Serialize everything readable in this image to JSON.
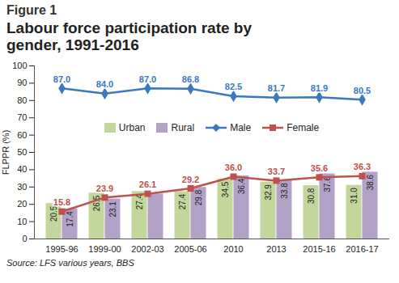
{
  "chart_data": {
    "type": "bar",
    "subtitle": "Figure 1",
    "title": "Labour force participation rate by gender, 1991-2016",
    "caption": "Source: LFS various years, BBS",
    "y_label": "FLPPR (%)",
    "categories": [
      "1995-96",
      "1999-00",
      "2002-03",
      "2005-06",
      "2010",
      "2013",
      "2015-16",
      "2016-17"
    ],
    "series": [
      {
        "name": "Urban",
        "type": "bar",
        "color": "#c3d69b",
        "values": [
          20.5,
          26.5,
          27.4,
          27.4,
          34.5,
          32.9,
          30.8,
          31.0
        ],
        "value_labels": [
          "20.5",
          "26.5",
          "27.4",
          "27.4",
          "34.5",
          "32.9",
          "30.8",
          "31.0"
        ]
      },
      {
        "name": "Rural",
        "type": "bar",
        "color": "#b3a2c7",
        "values": [
          17.4,
          23.1,
          26.0,
          29.8,
          36.4,
          33.8,
          37.6,
          38.6
        ],
        "value_labels": [
          "17.4",
          "23.1",
          null,
          "29.8",
          "36.4",
          "33.8",
          "37.6",
          "38.6"
        ]
      },
      {
        "name": "Male",
        "type": "line",
        "color": "#3a78c0",
        "marker": "diamond",
        "line_style": "solid",
        "values": [
          87.0,
          84.0,
          87.0,
          86.8,
          82.5,
          81.7,
          81.9,
          80.5
        ],
        "value_labels": [
          "87.0",
          "84.0",
          "87.0",
          "86.8",
          "82.5",
          "81.7",
          "81.9",
          "80.5"
        ]
      },
      {
        "name": "Female",
        "type": "line",
        "color": "#c0504d",
        "marker": "square",
        "line_style": "solid",
        "values": [
          15.8,
          23.9,
          26.1,
          29.2,
          36.0,
          33.7,
          35.6,
          36.3
        ],
        "value_labels": [
          "15.8",
          "23.9",
          "26.1",
          "29.2",
          "36.0",
          "33.7",
          "35.6",
          "36.3"
        ]
      }
    ],
    "ylim": [
      0,
      100
    ],
    "yticks": [
      0,
      10,
      20,
      30,
      40,
      50,
      60,
      70,
      80,
      90,
      100
    ],
    "grid": false,
    "legend": "top",
    "data_labels": true
  }
}
